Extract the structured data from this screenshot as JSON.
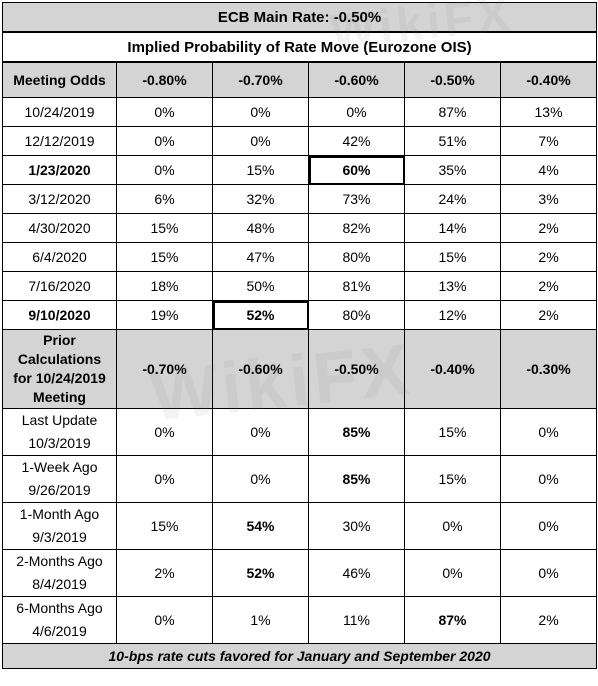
{
  "title": "ECB Main Rate: -0.50%",
  "subtitle": "Implied Probability of Rate Move (Eurozone OIS)",
  "meeting_odds": {
    "header": [
      "Meeting Odds",
      "-0.80%",
      "-0.70%",
      "-0.60%",
      "-0.50%",
      "-0.40%"
    ],
    "rows": [
      {
        "label": "10/24/2019",
        "bold": false,
        "values": [
          "0%",
          "0%",
          "0%",
          "87%",
          "13%"
        ],
        "highlight": null
      },
      {
        "label": "12/12/2019",
        "bold": false,
        "values": [
          "0%",
          "0%",
          "42%",
          "51%",
          "7%"
        ],
        "highlight": null
      },
      {
        "label": "1/23/2020",
        "bold": true,
        "values": [
          "0%",
          "15%",
          "60%",
          "35%",
          "4%"
        ],
        "highlight": 2
      },
      {
        "label": "3/12/2020",
        "bold": false,
        "values": [
          "6%",
          "32%",
          "73%",
          "24%",
          "3%"
        ],
        "highlight": null
      },
      {
        "label": "4/30/2020",
        "bold": false,
        "values": [
          "15%",
          "48%",
          "82%",
          "14%",
          "2%"
        ],
        "highlight": null
      },
      {
        "label": "6/4/2020",
        "bold": false,
        "values": [
          "15%",
          "47%",
          "80%",
          "15%",
          "2%"
        ],
        "highlight": null
      },
      {
        "label": "7/16/2020",
        "bold": false,
        "values": [
          "18%",
          "50%",
          "81%",
          "13%",
          "2%"
        ],
        "highlight": null
      },
      {
        "label": "9/10/2020",
        "bold": true,
        "values": [
          "19%",
          "52%",
          "80%",
          "12%",
          "2%"
        ],
        "highlight": 1
      }
    ]
  },
  "prior_calculations": {
    "header_label_lines": [
      "Prior",
      "Calculations",
      "for 10/24/2019",
      "Meeting"
    ],
    "header": [
      "-0.70%",
      "-0.60%",
      "-0.50%",
      "-0.40%",
      "-0.30%"
    ],
    "rows": [
      {
        "label1": "Last Update",
        "label2": "10/3/2019",
        "values": [
          "0%",
          "0%",
          "85%",
          "15%",
          "0%"
        ],
        "red": 2
      },
      {
        "label1": "1-Week Ago",
        "label2": "9/26/2019",
        "values": [
          "0%",
          "0%",
          "85%",
          "15%",
          "0%"
        ],
        "red": 2
      },
      {
        "label1": "1-Month Ago",
        "label2": "9/3/2019",
        "values": [
          "15%",
          "54%",
          "30%",
          "0%",
          "0%"
        ],
        "red": 1
      },
      {
        "label1": "2-Months Ago",
        "label2": "8/4/2019",
        "values": [
          "2%",
          "52%",
          "46%",
          "0%",
          "0%"
        ],
        "red": 1
      },
      {
        "label1": "6-Months Ago",
        "label2": "4/6/2019",
        "values": [
          "0%",
          "1%",
          "11%",
          "87%",
          "2%"
        ],
        "red": 3
      }
    ]
  },
  "footer": "10-bps rate cuts favored for January and September 2020",
  "watermark": "WikiFX",
  "colors": {
    "header_bg": "#d4d4d4",
    "highlight_red": "#e00000"
  }
}
